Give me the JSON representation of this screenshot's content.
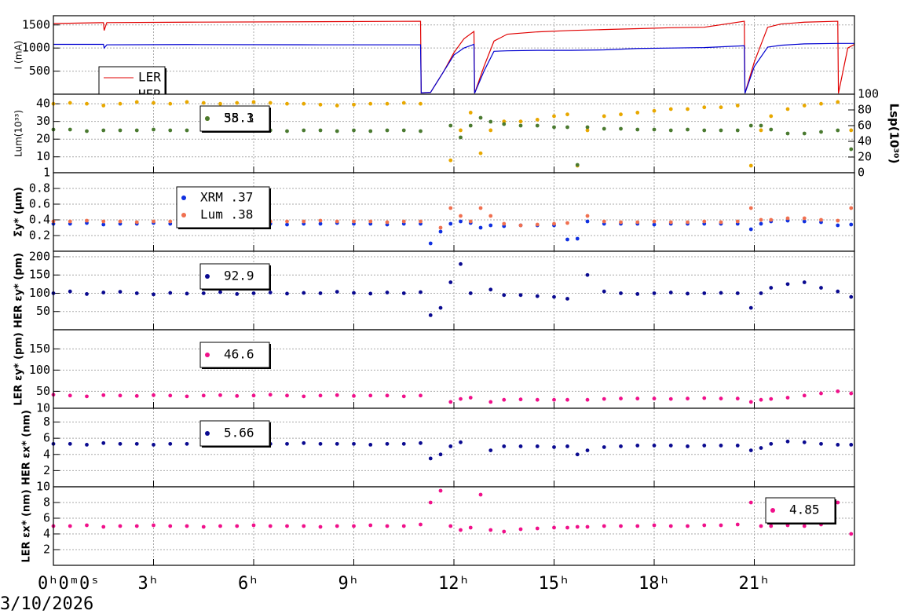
{
  "chart_data": [
    {
      "type": "line",
      "ylabel": "I (mA)",
      "xlim": [
        0,
        24
      ],
      "xticks": [
        0,
        3,
        6,
        9,
        12,
        15,
        18,
        21
      ],
      "ylim": [
        0,
        1700
      ],
      "yticks": [
        500,
        1000,
        1500
      ],
      "grid": true,
      "x": [
        0,
        1.5,
        1.52,
        1.6,
        4,
        8,
        11.0,
        11.02,
        11.3,
        11.7,
        12.0,
        12.3,
        12.6,
        12.62,
        12.9,
        13.2,
        13.6,
        14.5,
        15.5,
        16.5,
        17.5,
        18.5,
        19.5,
        20.7,
        20.72,
        21.0,
        21.4,
        21.8,
        22.5,
        23.5,
        23.52,
        23.8,
        24
      ],
      "series": [
        {
          "name": "LER",
          "color": "#e00000",
          "values": [
            1530,
            1550,
            1380,
            1550,
            1560,
            1570,
            1580,
            30,
            40,
            500,
            900,
            1200,
            1360,
            20,
            600,
            1150,
            1300,
            1350,
            1380,
            1400,
            1420,
            1440,
            1450,
            1580,
            20,
            700,
            1450,
            1520,
            1560,
            1580,
            20,
            1000,
            1080
          ]
        },
        {
          "name": "HER",
          "color": "#0000d0",
          "values": [
            1080,
            1080,
            1000,
            1070,
            1075,
            1070,
            1070,
            30,
            40,
            500,
            850,
            1000,
            1080,
            20,
            500,
            930,
            940,
            950,
            950,
            960,
            990,
            1000,
            1010,
            1050,
            20,
            600,
            1020,
            1060,
            1090,
            1100,
            1100,
            1100,
            1100
          ]
        }
      ]
    },
    {
      "type": "scatter",
      "ylabel": "Lum(10³³)",
      "y2label": "Lsp(10³⁰)",
      "xlim": [
        0,
        24
      ],
      "xticks": [
        0,
        3,
        6,
        9,
        12,
        15,
        18,
        21
      ],
      "ylim": [
        1,
        45.4
      ],
      "yticks": [
        1,
        10,
        20,
        30,
        40
      ],
      "y2lim": [
        0,
        100
      ],
      "y2ticks": [
        0,
        20,
        40,
        60,
        80,
        100
      ],
      "grid": true,
      "x": [
        0,
        0.5,
        1,
        1.5,
        2,
        2.5,
        3,
        3.5,
        4,
        4.5,
        5,
        5.5,
        6,
        6.5,
        7,
        7.5,
        8,
        8.5,
        9,
        9.5,
        10,
        10.5,
        11,
        11.3,
        11.6,
        11.9,
        12.2,
        12.5,
        12.8,
        13.1,
        13.5,
        14,
        14.5,
        15,
        15.4,
        15.7,
        16,
        16.5,
        17,
        17.5,
        18,
        18.5,
        19,
        19.5,
        20,
        20.5,
        20.9,
        21.2,
        21.5,
        22,
        22.5,
        23,
        23.5,
        23.9
      ],
      "series": [
        {
          "name": "58.1",
          "color": "#e8a800",
          "values": [
            40,
            40.5,
            40,
            39,
            40,
            41,
            40.5,
            40,
            41,
            40.5,
            40,
            40.5,
            41,
            40.5,
            40,
            40,
            39.5,
            39,
            39.5,
            40,
            40,
            40.5,
            40,
            null,
            null,
            8,
            25,
            35,
            12,
            25,
            30,
            30,
            31,
            33,
            34,
            5,
            25,
            33,
            34,
            35,
            36,
            37,
            37,
            38,
            38,
            39,
            5,
            25,
            33,
            37,
            39,
            40,
            41,
            25
          ]
        },
        {
          "name": "35.3",
          "color": "#4a7a30",
          "axis": "y2",
          "values": [
            55,
            55,
            53,
            54,
            54,
            54,
            55,
            54,
            54,
            55,
            55,
            54,
            54,
            54,
            53,
            54,
            54,
            53,
            54,
            53,
            54,
            54,
            53,
            null,
            null,
            60,
            45,
            60,
            70,
            65,
            62,
            60,
            60,
            58,
            58,
            10,
            58,
            56,
            56,
            55,
            55,
            54,
            55,
            54,
            54,
            54,
            60,
            60,
            55,
            50,
            50,
            52,
            54,
            30
          ]
        }
      ]
    },
    {
      "type": "scatter",
      "ylabel": "Σy* (μm)",
      "xlim": [
        0,
        24
      ],
      "xticks": [
        0,
        3,
        6,
        9,
        12,
        15,
        18,
        21
      ],
      "ylim": [
        0,
        1.0
      ],
      "yticks": [
        0.2,
        0.4,
        0.6,
        0.8
      ],
      "grid": true,
      "x": [
        0,
        0.5,
        1,
        1.5,
        2,
        2.5,
        3,
        3.5,
        4,
        4.5,
        5,
        5.5,
        6,
        6.5,
        7,
        7.5,
        8,
        8.5,
        9,
        9.5,
        10,
        10.5,
        11,
        11.3,
        11.6,
        11.9,
        12.2,
        12.5,
        12.8,
        13.1,
        13.5,
        14,
        14.5,
        15,
        15.4,
        15.7,
        16,
        16.5,
        17,
        17.5,
        18,
        18.5,
        19,
        19.5,
        20,
        20.5,
        20.9,
        21.2,
        21.5,
        22,
        22.5,
        23,
        23.5,
        23.9
      ],
      "series": [
        {
          "name": "XRM .37",
          "color": "#1030e0",
          "values": [
            0.35,
            0.35,
            0.36,
            0.34,
            0.35,
            0.35,
            0.36,
            0.35,
            0.34,
            0.35,
            0.35,
            0.36,
            0.35,
            0.35,
            0.34,
            0.35,
            0.35,
            0.36,
            0.35,
            0.35,
            0.34,
            0.35,
            0.35,
            0.1,
            0.25,
            0.35,
            0.38,
            0.36,
            0.3,
            0.33,
            0.32,
            0.33,
            0.33,
            0.33,
            0.15,
            0.16,
            0.38,
            0.35,
            0.35,
            0.35,
            0.34,
            0.35,
            0.35,
            0.35,
            0.35,
            0.35,
            0.28,
            0.35,
            0.38,
            0.39,
            0.38,
            0.37,
            0.33,
            0.34
          ]
        },
        {
          "name": "Lum .38",
          "color": "#f07050",
          "values": [
            0.38,
            0.38,
            0.39,
            0.38,
            0.38,
            0.37,
            0.38,
            0.38,
            0.39,
            0.38,
            0.38,
            0.38,
            0.37,
            0.38,
            0.38,
            0.38,
            0.39,
            0.38,
            0.38,
            0.38,
            0.37,
            0.38,
            0.38,
            null,
            0.3,
            0.55,
            0.45,
            0.38,
            0.55,
            0.45,
            0.35,
            0.33,
            0.34,
            0.35,
            0.36,
            null,
            0.45,
            0.38,
            0.37,
            0.37,
            0.38,
            0.37,
            0.37,
            0.38,
            0.37,
            0.38,
            0.55,
            0.4,
            0.4,
            0.42,
            0.42,
            0.4,
            0.39,
            0.55
          ]
        }
      ]
    },
    {
      "type": "scatter",
      "ylabel": "HER εy* (pm)",
      "xlim": [
        0,
        24
      ],
      "xticks": [
        0,
        3,
        6,
        9,
        12,
        15,
        18,
        21
      ],
      "ylim": [
        0,
        215
      ],
      "yticks": [
        50,
        100,
        150,
        200
      ],
      "grid": true,
      "x": [
        0,
        0.5,
        1,
        1.5,
        2,
        2.5,
        3,
        3.5,
        4,
        4.5,
        5,
        5.5,
        6,
        6.5,
        7,
        7.5,
        8,
        8.5,
        9,
        9.5,
        10,
        10.5,
        11,
        11.3,
        11.6,
        11.9,
        12.2,
        12.5,
        12.8,
        13.1,
        13.5,
        14,
        14.5,
        15,
        15.4,
        15.7,
        16,
        16.5,
        17,
        17.5,
        18,
        18.5,
        19,
        19.5,
        20,
        20.5,
        20.9,
        21.2,
        21.5,
        22,
        22.5,
        23,
        23.5,
        23.9
      ],
      "series": [
        {
          "name": "92.9",
          "color": "#0a0a90",
          "values": [
            100,
            105,
            98,
            102,
            104,
            100,
            97,
            101,
            99,
            100,
            103,
            98,
            100,
            102,
            99,
            101,
            100,
            104,
            101,
            99,
            102,
            100,
            103,
            40,
            60,
            130,
            180,
            100,
            null,
            110,
            95,
            95,
            92,
            90,
            85,
            null,
            150,
            105,
            100,
            98,
            100,
            102,
            99,
            100,
            101,
            100,
            60,
            100,
            115,
            125,
            130,
            115,
            105,
            90
          ]
        }
      ]
    },
    {
      "type": "scatter",
      "ylabel": "LER εy* (pm)",
      "xlim": [
        0,
        24
      ],
      "xticks": [
        0,
        3,
        6,
        9,
        12,
        15,
        18,
        21
      ],
      "ylim": [
        10,
        195
      ],
      "yticks": [
        10,
        50,
        100,
        150
      ],
      "grid": true,
      "x": [
        0,
        0.5,
        1,
        1.5,
        2,
        2.5,
        3,
        3.5,
        4,
        4.5,
        5,
        5.5,
        6,
        6.5,
        7,
        7.5,
        8,
        8.5,
        9,
        9.5,
        10,
        10.5,
        11,
        11.3,
        11.6,
        11.9,
        12.2,
        12.5,
        12.8,
        13.1,
        13.5,
        14,
        14.5,
        15,
        15.4,
        15.7,
        16,
        16.5,
        17,
        17.5,
        18,
        18.5,
        19,
        19.5,
        20,
        20.5,
        20.9,
        21.2,
        21.5,
        22,
        22.5,
        23,
        23.5,
        23.9
      ],
      "series": [
        {
          "name": "46.6",
          "color": "#f0108a",
          "values": [
            42,
            40,
            38,
            41,
            40,
            39,
            41,
            40,
            38,
            40,
            41,
            39,
            40,
            42,
            40,
            38,
            40,
            41,
            39,
            40,
            40,
            38,
            40,
            null,
            null,
            25,
            32,
            35,
            null,
            25,
            30,
            31,
            30,
            30,
            30,
            null,
            30,
            32,
            33,
            33,
            33,
            32,
            33,
            34,
            33,
            33,
            25,
            30,
            32,
            35,
            40,
            45,
            50,
            45
          ]
        }
      ]
    },
    {
      "type": "scatter",
      "ylabel": "HER εx* (nm)",
      "xlim": [
        0,
        24
      ],
      "xticks": [
        0,
        3,
        6,
        9,
        12,
        15,
        18,
        21
      ],
      "ylim": [
        0,
        9.7
      ],
      "yticks": [
        2,
        4,
        6,
        8
      ],
      "grid": true,
      "x": [
        0,
        0.5,
        1,
        1.5,
        2,
        2.5,
        3,
        3.5,
        4,
        4.5,
        5,
        5.5,
        6,
        6.5,
        7,
        7.5,
        8,
        8.5,
        9,
        9.5,
        10,
        10.5,
        11,
        11.3,
        11.6,
        11.9,
        12.2,
        12.5,
        12.8,
        13.1,
        13.5,
        14,
        14.5,
        15,
        15.4,
        15.7,
        16,
        16.5,
        17,
        17.5,
        18,
        18.5,
        19,
        19.5,
        20,
        20.5,
        20.9,
        21.2,
        21.5,
        22,
        22.5,
        23,
        23.5,
        23.9
      ],
      "series": [
        {
          "name": "5.66",
          "color": "#0a0a90",
          "values": [
            5.3,
            5.3,
            5.2,
            5.4,
            5.3,
            5.3,
            5.2,
            5.3,
            5.3,
            5.4,
            5.3,
            5.3,
            5.2,
            5.3,
            5.3,
            5.4,
            5.3,
            5.3,
            5.3,
            5.2,
            5.3,
            5.3,
            5.4,
            3.5,
            4,
            5,
            5.5,
            null,
            null,
            4.5,
            5,
            5,
            5,
            4.9,
            5,
            4,
            4.5,
            4.9,
            5,
            5.1,
            5.1,
            5.1,
            5,
            5.1,
            5.1,
            5.1,
            4.5,
            4.8,
            5.3,
            5.6,
            5.5,
            5.3,
            5.2,
            5.2
          ]
        }
      ]
    },
    {
      "type": "scatter",
      "ylabel": "LER εx* (nm)",
      "xlim": [
        0,
        24
      ],
      "xticks": [
        {
          "value": 0,
          "label": "0ʰ0ᵐ0ˢ"
        },
        {
          "value": 3,
          "label": "3ʰ"
        },
        {
          "value": 6,
          "label": "6ʰ"
        },
        {
          "value": 9,
          "label": "9ʰ"
        },
        {
          "value": 12,
          "label": "12ʰ"
        },
        {
          "value": 15,
          "label": "15ʰ"
        },
        {
          "value": 18,
          "label": "18ʰ"
        },
        {
          "value": 21,
          "label": "21ʰ"
        }
      ],
      "date": "3/10/2026",
      "ylim": [
        0,
        10
      ],
      "yticks": [
        2,
        4,
        6,
        8,
        10
      ],
      "grid": true,
      "x": [
        0,
        0.5,
        1,
        1.5,
        2,
        2.5,
        3,
        3.5,
        4,
        4.5,
        5,
        5.5,
        6,
        6.5,
        7,
        7.5,
        8,
        8.5,
        9,
        9.5,
        10,
        10.5,
        11,
        11.3,
        11.6,
        11.9,
        12.2,
        12.5,
        12.8,
        13.1,
        13.5,
        14,
        14.5,
        15,
        15.4,
        15.7,
        16,
        16.5,
        17,
        17.5,
        18,
        18.5,
        19,
        19.5,
        20,
        20.5,
        20.9,
        21.2,
        21.5,
        22,
        22.5,
        23,
        23.5,
        23.9
      ],
      "series": [
        {
          "name": "4.85",
          "color": "#f0108a",
          "values": [
            5,
            5,
            5.1,
            4.9,
            5,
            5,
            5.1,
            5,
            5,
            4.9,
            5,
            5,
            5.1,
            5,
            5,
            5,
            4.9,
            5,
            5,
            5.1,
            5,
            5,
            5.2,
            8,
            9.5,
            5,
            4.5,
            4.8,
            9,
            4.5,
            4.3,
            4.6,
            4.7,
            4.8,
            4.8,
            4.9,
            4.9,
            5,
            5,
            5,
            5.1,
            5,
            5,
            5.1,
            5.1,
            5.2,
            8,
            5,
            5,
            5.1,
            5,
            5.2,
            8,
            4
          ]
        }
      ]
    }
  ]
}
